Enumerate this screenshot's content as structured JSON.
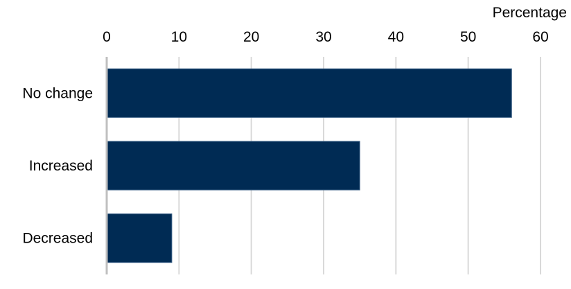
{
  "chart_data": {
    "type": "bar",
    "orientation": "horizontal",
    "categories": [
      "No change",
      "Increased",
      "Decreased"
    ],
    "values": [
      56,
      35,
      9
    ],
    "xlabel": "Percentage",
    "xlim": [
      0,
      60
    ],
    "xticks": [
      "0",
      "10",
      "20",
      "30",
      "40",
      "50",
      "60"
    ],
    "x_axis_position": "top",
    "grid": true,
    "bar_color": "#002b54",
    "grid_color": "#d9d9d9"
  }
}
